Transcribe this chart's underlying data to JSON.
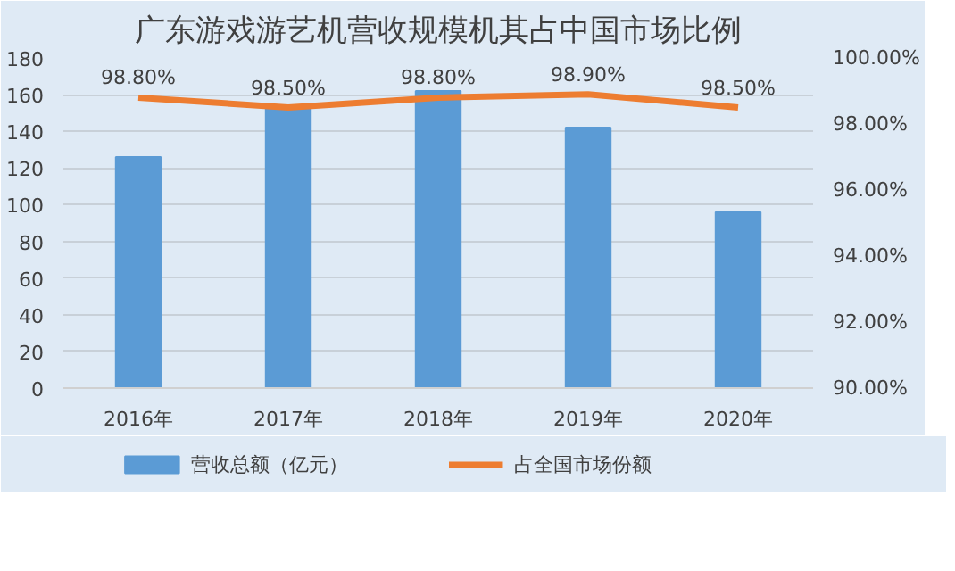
{
  "chart_data": {
    "type": "bar",
    "title": "广东游戏游艺机营收规模机其占中国市场比例",
    "categories": [
      "2016年",
      "2017年",
      "2018年",
      "2019年",
      "2020年"
    ],
    "series": [
      {
        "name": "营收总额（亿元）",
        "color": "#5b9bd5",
        "values": [
          126,
          153,
          162,
          142,
          96
        ]
      },
      {
        "name": "占全国市场份额",
        "type": "line",
        "axis": "y2",
        "color": "#ed7d31",
        "values": [
          98.8,
          98.5,
          98.8,
          98.9,
          98.5
        ],
        "value_labels": [
          "98.80%",
          "98.50%",
          "98.80%",
          "98.90%",
          "98.50%"
        ]
      }
    ],
    "ylim": [
      0,
      180
    ],
    "yticks": [
      0,
      20,
      40,
      60,
      80,
      100,
      120,
      140,
      160,
      180
    ],
    "y2lim": [
      90,
      100
    ],
    "y2ticks": [
      {
        "value": 90,
        "label": "90.00%"
      },
      {
        "value": 92,
        "label": "92.00%"
      },
      {
        "value": 94,
        "label": "94.00%"
      },
      {
        "value": 96,
        "label": "96.00%"
      },
      {
        "value": 98,
        "label": "98.00%"
      },
      {
        "value": 100,
        "label": "100.00%"
      }
    ],
    "grid": "y",
    "legend": "bottom",
    "marker": "none",
    "line_style": "solid"
  }
}
